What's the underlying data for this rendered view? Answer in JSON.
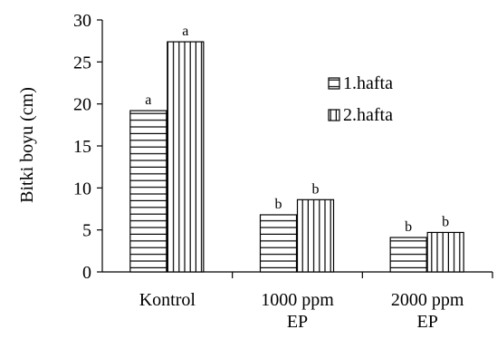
{
  "chart_data": {
    "type": "bar",
    "ylabel": "Bitki boyu (cm)",
    "xlabel": "",
    "ylim": [
      0,
      30
    ],
    "yticks": [
      0,
      5,
      10,
      15,
      20,
      25,
      30
    ],
    "grid": false,
    "legend_position": "right",
    "categories": [
      [
        "Kontrol"
      ],
      [
        "1000 ppm",
        "EP"
      ],
      [
        "2000 ppm",
        "EP"
      ]
    ],
    "series": [
      {
        "name": "1.hafta",
        "pattern": "horizontal-stripes",
        "values": [
          19.2,
          6.8,
          4.1
        ],
        "labels": [
          "a",
          "b",
          "b"
        ]
      },
      {
        "name": "2.hafta",
        "pattern": "vertical-stripes",
        "values": [
          27.4,
          8.6,
          4.7
        ],
        "labels": [
          "a",
          "b",
          "b"
        ]
      }
    ]
  }
}
